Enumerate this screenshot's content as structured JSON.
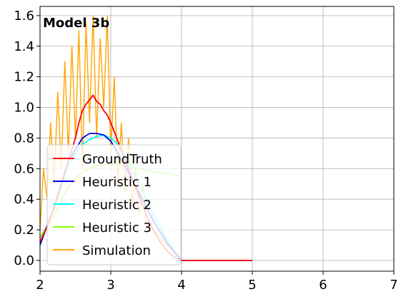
{
  "chart_data": {
    "type": "line",
    "title": "",
    "xlabel": "",
    "ylabel": "",
    "annotation": "Model 3b",
    "xlim": [
      2,
      7
    ],
    "ylim": [
      -0.07,
      1.66
    ],
    "xticks": [
      2,
      3,
      4,
      5,
      6,
      7
    ],
    "yticks": [
      0.0,
      0.2,
      0.4,
      0.6,
      0.8,
      1.0,
      1.2,
      1.4,
      1.6
    ],
    "xtick_labels": [
      "2",
      "3",
      "4",
      "5",
      "6",
      "7"
    ],
    "ytick_labels": [
      "0.0",
      "0.2",
      "0.4",
      "0.6",
      "0.8",
      "1.0",
      "1.2",
      "1.4",
      "1.6"
    ],
    "grid": true,
    "legend_position": "lower-left",
    "colors": {
      "GroundTruth": "#ff0000",
      "Heuristic 1": "#0000ff",
      "Heuristic 2": "#00ffff",
      "Heuristic 3": "#80ff00",
      "Simulation": "#ffa500"
    },
    "series": [
      {
        "name": "GroundTruth",
        "x": [
          2.0,
          2.1,
          2.2,
          2.3,
          2.4,
          2.5,
          2.55,
          2.6,
          2.65,
          2.7,
          2.75,
          2.8,
          2.85,
          2.9,
          2.95,
          3.0,
          3.1,
          3.2,
          3.3,
          3.4,
          3.5,
          3.6,
          3.7,
          3.8,
          3.9,
          4.0,
          4.5,
          5.0
        ],
        "y": [
          0.12,
          0.22,
          0.35,
          0.5,
          0.65,
          0.8,
          0.9,
          0.98,
          1.02,
          1.05,
          1.08,
          1.04,
          1.02,
          0.98,
          0.95,
          0.9,
          0.78,
          0.66,
          0.54,
          0.42,
          0.3,
          0.2,
          0.12,
          0.06,
          0.02,
          0.0,
          0.0,
          0.0
        ]
      },
      {
        "name": "Heuristic 1",
        "x": [
          2.0,
          2.2,
          2.4,
          2.6,
          2.7,
          2.8,
          2.9,
          3.0,
          3.2,
          3.4,
          3.6,
          3.8,
          4.0,
          4.5,
          5.0
        ],
        "y": [
          0.1,
          0.35,
          0.65,
          0.8,
          0.83,
          0.83,
          0.82,
          0.78,
          0.62,
          0.44,
          0.26,
          0.11,
          0.0,
          0.0,
          0.0
        ]
      },
      {
        "name": "Heuristic 2",
        "x": [
          2.0,
          2.2,
          2.4,
          2.5,
          2.6,
          2.7,
          2.8,
          2.9,
          3.0,
          3.1,
          3.2,
          3.4,
          3.6,
          3.8,
          4.0
        ],
        "y": [
          0.12,
          0.34,
          0.62,
          0.7,
          0.76,
          0.79,
          0.81,
          0.82,
          0.8,
          0.76,
          0.68,
          0.5,
          0.3,
          0.13,
          0.0
        ]
      },
      {
        "name": "Heuristic 3",
        "x": [
          2.0,
          2.2,
          2.4,
          2.6,
          2.8,
          3.0,
          3.2,
          3.4,
          3.6,
          3.8,
          4.0
        ],
        "y": [
          0.15,
          0.3,
          0.48,
          0.58,
          0.62,
          0.63,
          0.62,
          0.6,
          0.58,
          0.57,
          0.55
        ]
      },
      {
        "name": "Simulation",
        "x": [
          2.0,
          2.05,
          2.1,
          2.15,
          2.2,
          2.25,
          2.3,
          2.35,
          2.4,
          2.45,
          2.5,
          2.55,
          2.6,
          2.65,
          2.7,
          2.75,
          2.8,
          2.85,
          2.9,
          2.95,
          3.0,
          3.05,
          3.1,
          3.15,
          3.2,
          3.25,
          3.3,
          3.35,
          3.4,
          3.45,
          3.5,
          3.6,
          3.7,
          3.8,
          3.9,
          4.0
        ],
        "y": [
          0.2,
          0.6,
          0.4,
          0.9,
          0.5,
          1.1,
          0.6,
          1.3,
          0.7,
          1.4,
          0.8,
          1.5,
          0.6,
          1.55,
          0.9,
          1.6,
          0.8,
          1.45,
          1.0,
          1.6,
          0.7,
          1.2,
          0.5,
          0.9,
          0.45,
          0.8,
          0.35,
          0.6,
          0.3,
          0.5,
          0.25,
          0.2,
          0.15,
          0.1,
          0.05,
          0.0
        ]
      }
    ]
  }
}
